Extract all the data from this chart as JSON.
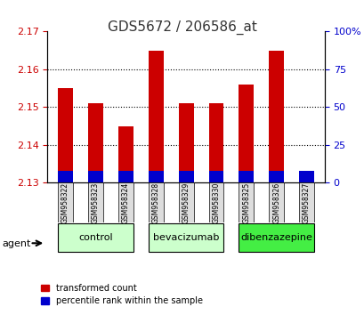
{
  "title": "GDS5672 / 206586_at",
  "samples": [
    "GSM958322",
    "GSM958323",
    "GSM958324",
    "GSM958328",
    "GSM958329",
    "GSM958330",
    "GSM958325",
    "GSM958326",
    "GSM958327"
  ],
  "transformed_count": [
    2.155,
    2.151,
    2.145,
    2.165,
    2.151,
    2.151,
    2.156,
    2.165,
    2.132
  ],
  "blue_pct": 8.0,
  "bar_base": 2.13,
  "ylim_left": [
    2.13,
    2.17
  ],
  "ylim_right": [
    0,
    100
  ],
  "yticks_left": [
    2.13,
    2.14,
    2.15,
    2.16,
    2.17
  ],
  "yticks_right": [
    0,
    25,
    50,
    75,
    100
  ],
  "grid_lines": [
    2.14,
    2.15,
    2.16
  ],
  "groups": [
    {
      "label": "control",
      "indices": [
        0,
        1,
        2
      ],
      "color": "#ccffcc"
    },
    {
      "label": "bevacizumab",
      "indices": [
        3,
        4,
        5
      ],
      "color": "#ccffcc"
    },
    {
      "label": "dibenzazepine",
      "indices": [
        6,
        7,
        8
      ],
      "color": "#44ee44"
    }
  ],
  "bar_color_red": "#cc0000",
  "bar_color_blue": "#0000cc",
  "agent_label": "agent",
  "legend_red": "transformed count",
  "legend_blue": "percentile rank within the sample",
  "title_color": "#333333",
  "left_axis_color": "#cc0000",
  "right_axis_color": "#0000cc",
  "bar_width": 0.5,
  "xtick_box_color": "#dddddd"
}
